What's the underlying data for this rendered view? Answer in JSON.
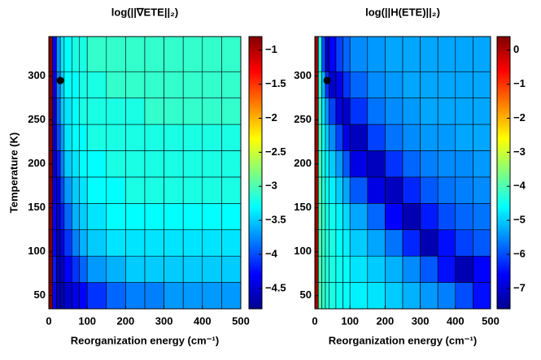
{
  "chart_data": [
    {
      "type": "heatmap",
      "title": "log(||∇ETE||₂)",
      "xlabel": "Reorganization energy (cm⁻¹)",
      "ylabel": "Temperature (K)",
      "x": [
        0,
        10,
        20,
        30,
        40,
        60,
        80,
        100,
        150,
        200,
        250,
        300,
        350,
        400,
        450,
        500
      ],
      "y": [
        35,
        65,
        95,
        125,
        155,
        185,
        215,
        245,
        275,
        305,
        345
      ],
      "values": [
        [
          -0.8,
          -4.3,
          -4.6,
          -4.6,
          -4.5,
          -4.4,
          -4.3,
          -4.1,
          -3.9,
          -3.8,
          -3.8,
          -3.7,
          -3.7,
          -3.7,
          -3.7
        ],
        [
          -0.8,
          -4.2,
          -4.6,
          -4.5,
          -4.3,
          -4.1,
          -3.9,
          -3.7,
          -3.6,
          -3.5,
          -3.5,
          -3.5,
          -3.5,
          -3.5,
          -3.5
        ],
        [
          -0.8,
          -4.3,
          -4.6,
          -4.4,
          -4.1,
          -3.8,
          -3.6,
          -3.5,
          -3.4,
          -3.4,
          -3.4,
          -3.4,
          -3.4,
          -3.4,
          -3.4
        ],
        [
          -0.8,
          -4.3,
          -4.5,
          -4.2,
          -3.9,
          -3.6,
          -3.5,
          -3.4,
          -3.3,
          -3.3,
          -3.3,
          -3.3,
          -3.3,
          -3.3,
          -3.3
        ],
        [
          -0.8,
          -4.4,
          -4.4,
          -4.0,
          -3.7,
          -3.5,
          -3.4,
          -3.3,
          -3.3,
          -3.2,
          -3.2,
          -3.2,
          -3.2,
          -3.2,
          -3.2
        ],
        [
          -0.8,
          -4.5,
          -4.2,
          -3.8,
          -3.5,
          -3.4,
          -3.3,
          -3.3,
          -3.2,
          -3.2,
          -3.2,
          -3.2,
          -3.2,
          -3.2,
          -3.2
        ],
        [
          -0.8,
          -4.5,
          -4.0,
          -3.7,
          -3.4,
          -3.3,
          -3.3,
          -3.2,
          -3.2,
          -3.2,
          -3.2,
          -3.2,
          -3.2,
          -3.2,
          -3.2
        ],
        [
          -0.8,
          -4.5,
          -3.9,
          -3.5,
          -3.4,
          -3.3,
          -3.2,
          -3.2,
          -3.2,
          -3.2,
          -3.1,
          -3.1,
          -3.1,
          -3.1,
          -3.1
        ],
        [
          -0.8,
          -4.4,
          -3.8,
          -3.5,
          -3.3,
          -3.3,
          -3.2,
          -3.2,
          -3.1,
          -3.1,
          -3.1,
          -3.1,
          -3.1,
          -3.1,
          -3.1
        ],
        [
          -0.8,
          -4.3,
          -3.7,
          -3.4,
          -3.3,
          -3.2,
          -3.2,
          -3.1,
          -3.1,
          -3.1,
          -3.1,
          -3.1,
          -3.1,
          -3.1,
          -3.1
        ]
      ],
      "xlim": [
        0,
        500
      ],
      "ylim": [
        35,
        345
      ],
      "xticks": [
        0,
        100,
        200,
        300,
        400,
        500
      ],
      "yticks": [
        50,
        100,
        150,
        200,
        250,
        300
      ],
      "clim": [
        -4.8,
        -0.8
      ],
      "colormap": "jet",
      "cticks": [
        {
          "value": -1,
          "label": "−1"
        },
        {
          "value": -1.5,
          "label": "−1.5"
        },
        {
          "value": -2,
          "label": "−2"
        },
        {
          "value": -2.5,
          "label": "−2.5"
        },
        {
          "value": -3,
          "label": "−3"
        },
        {
          "value": -3.5,
          "label": "−3.5"
        },
        {
          "value": -4,
          "label": "−4"
        },
        {
          "value": -4.5,
          "label": "−4.5"
        }
      ],
      "point": {
        "x": 30,
        "y": 295
      }
    },
    {
      "type": "heatmap",
      "title": "log(||H(ETE)||₂)",
      "xlabel": "Reorganization energy (cm⁻¹)",
      "x": [
        0,
        10,
        20,
        30,
        40,
        60,
        80,
        100,
        150,
        200,
        250,
        300,
        350,
        400,
        450,
        500
      ],
      "y": [
        35,
        65,
        95,
        125,
        155,
        185,
        215,
        245,
        275,
        305,
        345
      ],
      "values": [
        [
          0.2,
          -4.0,
          -4.2,
          -4.3,
          -4.4,
          -4.5,
          -4.6,
          -4.7,
          -4.8,
          -5.0,
          -5.2,
          -5.4,
          -5.6,
          -6.0,
          -6.5
        ],
        [
          0.2,
          -4.0,
          -4.2,
          -4.3,
          -4.4,
          -4.5,
          -4.6,
          -4.8,
          -5.0,
          -5.2,
          -5.5,
          -5.9,
          -6.5,
          -7.2,
          -6.6
        ],
        [
          0.2,
          -4.0,
          -4.2,
          -4.3,
          -4.4,
          -4.6,
          -4.7,
          -5.0,
          -5.3,
          -5.7,
          -6.3,
          -7.2,
          -6.5,
          -6.1,
          -5.9
        ],
        [
          0.2,
          -4.0,
          -4.2,
          -4.4,
          -4.5,
          -4.7,
          -4.9,
          -5.3,
          -5.8,
          -6.6,
          -7.2,
          -6.4,
          -6.0,
          -5.8,
          -5.7
        ],
        [
          0.2,
          -4.0,
          -4.3,
          -4.5,
          -4.7,
          -5.0,
          -5.3,
          -5.9,
          -6.8,
          -7.1,
          -6.3,
          -5.9,
          -5.7,
          -5.6,
          -5.5
        ],
        [
          0.2,
          -4.1,
          -4.4,
          -4.7,
          -5.0,
          -5.4,
          -5.9,
          -6.8,
          -7.1,
          -6.2,
          -5.8,
          -5.6,
          -5.5,
          -5.5,
          -5.4
        ],
        [
          0.2,
          -4.1,
          -4.5,
          -5.0,
          -5.5,
          -6.1,
          -6.8,
          -7.1,
          -6.1,
          -5.7,
          -5.5,
          -5.4,
          -5.4,
          -5.3,
          -5.3
        ],
        [
          0.2,
          -4.2,
          -4.8,
          -5.4,
          -6.1,
          -6.9,
          -7.0,
          -6.2,
          -5.7,
          -5.5,
          -5.4,
          -5.3,
          -5.3,
          -5.3,
          -5.3
        ],
        [
          0.2,
          -4.3,
          -5.2,
          -6.2,
          -7.0,
          -6.8,
          -6.2,
          -5.8,
          -5.5,
          -5.4,
          -5.3,
          -5.3,
          -5.3,
          -5.3,
          -5.3
        ],
        [
          0.2,
          -4.5,
          -6.0,
          -7.1,
          -6.6,
          -6.1,
          -5.8,
          -5.5,
          -5.4,
          -5.3,
          -5.3,
          -5.3,
          -5.3,
          -5.3,
          -5.3
        ]
      ],
      "xlim": [
        0,
        500
      ],
      "ylim": [
        35,
        345
      ],
      "xticks": [
        0,
        100,
        200,
        300,
        400,
        500
      ],
      "yticks": [
        50,
        100,
        150,
        200,
        250,
        300
      ],
      "clim": [
        -7.6,
        0.4
      ],
      "colormap": "jet",
      "cticks": [
        0,
        {
          "value": -1,
          "label": "−1"
        },
        {
          "value": -2,
          "label": "−2"
        },
        {
          "value": -3,
          "label": "−3"
        },
        {
          "value": -4,
          "label": "−4"
        },
        {
          "value": -5,
          "label": "−5"
        },
        {
          "value": -6,
          "label": "−6"
        },
        {
          "value": -7,
          "label": "−7"
        }
      ],
      "point": {
        "x": 35,
        "y": 295
      }
    }
  ]
}
